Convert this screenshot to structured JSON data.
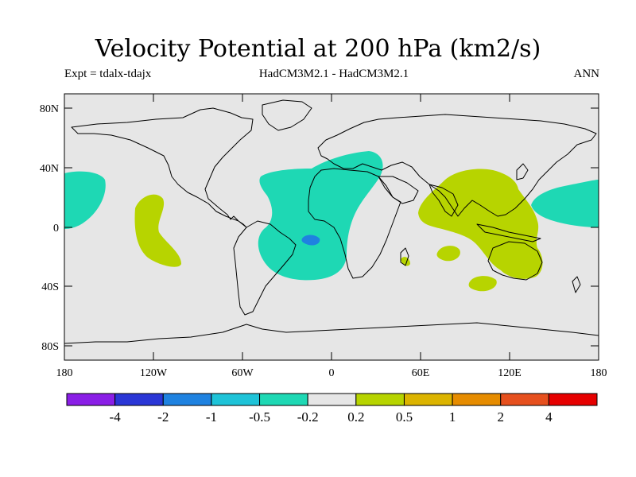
{
  "title": "Velocity Potential at 200 hPa (km2/s)",
  "subtitle_left": "Expt = tdalx-tdajx",
  "subtitle_center": "HadCM3M2.1 - HadCM3M2.1",
  "subtitle_right": "ANN",
  "lat_ticks": [
    "80N",
    "40N",
    "0",
    "40S",
    "80S"
  ],
  "lon_ticks": [
    "180",
    "120W",
    "60W",
    "0",
    "60E",
    "120E",
    "180"
  ],
  "colorbar": {
    "colors": [
      "#8a1ee6",
      "#2a36d6",
      "#1f82e0",
      "#1ec3d8",
      "#1ed8b4",
      "#e6e6e6",
      "#b7d400",
      "#dcb400",
      "#e68c00",
      "#e6501e",
      "#e60000"
    ],
    "labels": [
      "-4",
      "-2",
      "-1",
      "-0.5",
      "-0.2",
      "0.2",
      "0.5",
      "1",
      "2",
      "4"
    ]
  },
  "map": {
    "background": "#e6e6e6"
  }
}
